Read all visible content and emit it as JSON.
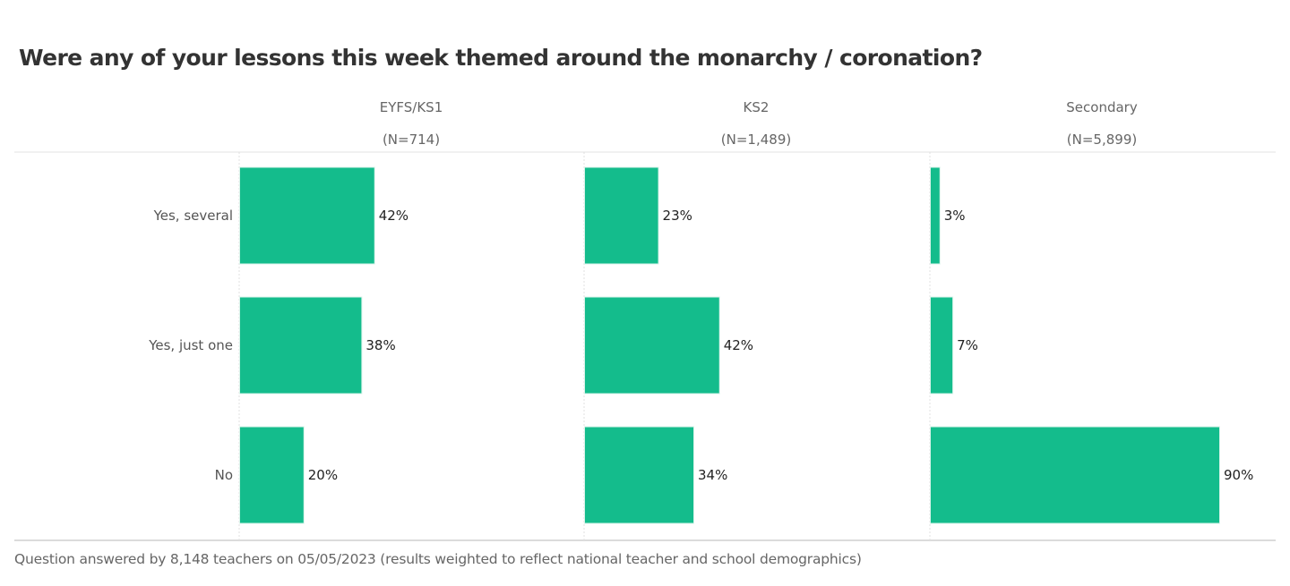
{
  "chart_data": {
    "type": "bar",
    "orientation": "horizontal",
    "title": "Were any of your lessons this week themed around the monarchy / coronation?",
    "categories": [
      "Yes, several",
      "Yes, just one",
      "No"
    ],
    "panels": [
      {
        "name": "EYFS/KS1",
        "n_label": "(N=714)",
        "values": [
          42,
          38,
          20
        ]
      },
      {
        "name": "KS2",
        "n_label": "(N=1,489)",
        "values": [
          23,
          42,
          34
        ]
      },
      {
        "name": "Secondary",
        "n_label": "(N=5,899)",
        "values": [
          3,
          7,
          90
        ]
      }
    ],
    "value_suffix": "%",
    "xlim": [
      0,
      100
    ],
    "xlabel": "",
    "ylabel": "",
    "grid": false,
    "bar_color": "#14BC8C",
    "footnote": "Question answered by 8,148 teachers on 05/05/2023 (results weighted to reflect national teacher and school demographics)"
  }
}
